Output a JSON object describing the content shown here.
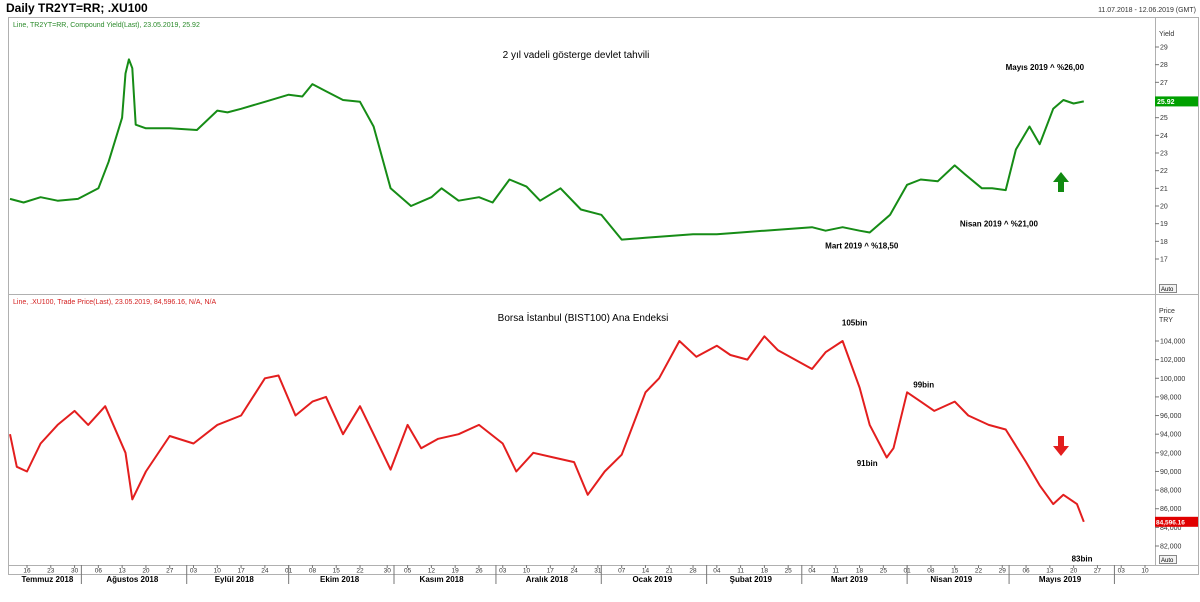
{
  "header": {
    "title": "Daily TR2YT=RR; .XU100",
    "date_range": "11.07.2018 - 12.06.2019 (GMT)"
  },
  "top_panel": {
    "info": "Line, TR2YT=RR, Compound Yield(Last), 23.05.2019, 25.92",
    "axis_label": "Yield",
    "last_value_label": "25.92",
    "auto_label": "Auto",
    "line_color": "#168c16",
    "badge_color": "#00a000"
  },
  "bottom_panel": {
    "info": "Line, .XU100, Trade Price(Last), 23.05.2019, 84,596.16, N/A, N/A",
    "axis_label_1": "Price",
    "axis_label_2": "TRY",
    "last_value_label": "84,596.16",
    "auto_label": "Auto",
    "line_color": "#e31e1e",
    "badge_color": "#e00000"
  },
  "chart_data": [
    {
      "type": "line",
      "title": "2 yıl vadeli gösterge devlet tahvili",
      "ylabel": "Yield",
      "ylim": [
        16.5,
        29.5
      ],
      "yticks": [
        17,
        18,
        19,
        20,
        21,
        22,
        23,
        24,
        25,
        26,
        27,
        28,
        29
      ],
      "grid": false,
      "series": [
        {
          "x": [
            "2018-07-11",
            "2018-07-15",
            "2018-07-20",
            "2018-07-25",
            "2018-07-31",
            "2018-08-06",
            "2018-08-09",
            "2018-08-13",
            "2018-08-14",
            "2018-08-15",
            "2018-08-16",
            "2018-08-17",
            "2018-08-20",
            "2018-08-27",
            "2018-09-04",
            "2018-09-10",
            "2018-09-13",
            "2018-09-17",
            "2018-09-24",
            "2018-10-01",
            "2018-10-05",
            "2018-10-08",
            "2018-10-12",
            "2018-10-17",
            "2018-10-22",
            "2018-10-26",
            "2018-10-31",
            "2018-11-06",
            "2018-11-12",
            "2018-11-15",
            "2018-11-20",
            "2018-11-26",
            "2018-11-30",
            "2018-12-05",
            "2018-12-10",
            "2018-12-14",
            "2018-12-20",
            "2018-12-26",
            "2019-01-01",
            "2019-01-07",
            "2019-01-14",
            "2019-01-21",
            "2019-01-28",
            "2019-02-04",
            "2019-02-11",
            "2019-02-18",
            "2019-02-25",
            "2019-03-04",
            "2019-03-08",
            "2019-03-13",
            "2019-03-18",
            "2019-03-21",
            "2019-03-27",
            "2019-04-01",
            "2019-04-05",
            "2019-04-10",
            "2019-04-15",
            "2019-04-18",
            "2019-04-23",
            "2019-04-26",
            "2019-04-30",
            "2019-05-03",
            "2019-05-07",
            "2019-05-10",
            "2019-05-14",
            "2019-05-17",
            "2019-05-20",
            "2019-05-23"
          ],
          "y": [
            20.4,
            20.2,
            20.5,
            20.3,
            20.4,
            21.0,
            22.5,
            25.0,
            27.5,
            28.3,
            27.8,
            24.6,
            24.4,
            24.4,
            24.3,
            25.4,
            25.3,
            25.5,
            25.9,
            26.3,
            26.2,
            26.9,
            26.5,
            26.0,
            25.9,
            24.5,
            21.0,
            20.0,
            20.5,
            21.0,
            20.3,
            20.5,
            20.2,
            21.5,
            21.1,
            20.3,
            21.0,
            19.8,
            19.5,
            18.1,
            18.2,
            18.3,
            18.4,
            18.4,
            18.5,
            18.6,
            18.7,
            18.8,
            18.6,
            18.8,
            18.6,
            18.5,
            19.5,
            21.2,
            21.5,
            21.4,
            22.3,
            21.8,
            21.0,
            21.0,
            20.9,
            23.2,
            24.5,
            23.5,
            25.5,
            26.0,
            25.8,
            25.92
          ]
        }
      ],
      "annotations": [
        {
          "text": "Mayıs 2019 ^ %26,00",
          "x": "2019-05-13",
          "y": 26.0
        },
        {
          "text": "Nisan 2019 ^ %21,00",
          "x": "2019-04-28",
          "y": 21.0
        },
        {
          "text": "Mart 2019 ^ %18,50",
          "x": "2019-03-21",
          "y": 18.5
        }
      ]
    },
    {
      "type": "line",
      "title": "Borsa İstanbul (BIST100) Ana Endeksi",
      "ylabel": "Price",
      "ylim": [
        81000,
        106000
      ],
      "yticks": [
        82000,
        84000,
        86000,
        88000,
        90000,
        92000,
        94000,
        96000,
        98000,
        100000,
        102000,
        104000
      ],
      "ytick_labels": [
        "82,000",
        "84,000",
        "86,000",
        "88,000",
        "90,000",
        "92,000",
        "94,000",
        "96,000",
        "98,000",
        "100,000",
        "102,000",
        "104,000"
      ],
      "grid": false,
      "series": [
        {
          "x": [
            "2018-07-11",
            "2018-07-13",
            "2018-07-16",
            "2018-07-20",
            "2018-07-25",
            "2018-07-30",
            "2018-08-03",
            "2018-08-08",
            "2018-08-14",
            "2018-08-16",
            "2018-08-20",
            "2018-08-27",
            "2018-09-03",
            "2018-09-10",
            "2018-09-17",
            "2018-09-24",
            "2018-09-28",
            "2018-10-03",
            "2018-10-08",
            "2018-10-12",
            "2018-10-17",
            "2018-10-22",
            "2018-10-26",
            "2018-10-31",
            "2018-11-05",
            "2018-11-09",
            "2018-11-14",
            "2018-11-20",
            "2018-11-26",
            "2018-12-03",
            "2018-12-07",
            "2018-12-12",
            "2018-12-18",
            "2018-12-24",
            "2018-12-28",
            "2019-01-02",
            "2019-01-07",
            "2019-01-14",
            "2019-01-18",
            "2019-01-24",
            "2019-01-29",
            "2019-02-04",
            "2019-02-08",
            "2019-02-13",
            "2019-02-18",
            "2019-02-22",
            "2019-02-27",
            "2019-03-04",
            "2019-03-08",
            "2019-03-13",
            "2019-03-18",
            "2019-03-21",
            "2019-03-26",
            "2019-03-28",
            "2019-04-01",
            "2019-04-05",
            "2019-04-09",
            "2019-04-15",
            "2019-04-19",
            "2019-04-25",
            "2019-04-30",
            "2019-05-06",
            "2019-05-10",
            "2019-05-14",
            "2019-05-17",
            "2019-05-21",
            "2019-05-23"
          ],
          "y": [
            94000,
            90500,
            90000,
            93000,
            95000,
            96500,
            95000,
            97000,
            92000,
            87000,
            90000,
            93800,
            93000,
            95000,
            96000,
            100000,
            100300,
            96000,
            97500,
            98000,
            94000,
            97000,
            94000,
            90200,
            95000,
            92500,
            93500,
            94000,
            95000,
            93000,
            90000,
            92000,
            91500,
            91000,
            87500,
            90000,
            91800,
            98500,
            100000,
            104000,
            102300,
            103500,
            102500,
            102000,
            104500,
            103000,
            102000,
            101000,
            102800,
            104000,
            99000,
            95000,
            91500,
            92500,
            98500,
            97500,
            96500,
            97500,
            96000,
            95000,
            94500,
            91000,
            88500,
            86500,
            87500,
            86500,
            84596.16
          ]
        }
      ],
      "annotations": [
        {
          "text": "105bin",
          "x": "2019-03-18",
          "y": 105000
        },
        {
          "text": "99bin",
          "x": "2019-04-05",
          "y": 99000
        },
        {
          "text": "91bin",
          "x": "2019-03-22",
          "y": 91000
        },
        {
          "text": "83bin",
          "x": "2019-05-21",
          "y": 83000
        }
      ]
    }
  ],
  "x_axis": {
    "day_ticks": [
      {
        "label": "16",
        "date": "2018-07-16"
      },
      {
        "label": "23",
        "date": "2018-07-23"
      },
      {
        "label": "30",
        "date": "2018-07-30"
      },
      {
        "label": "06",
        "date": "2018-08-06"
      },
      {
        "label": "13",
        "date": "2018-08-13"
      },
      {
        "label": "20",
        "date": "2018-08-20"
      },
      {
        "label": "27",
        "date": "2018-08-27"
      },
      {
        "label": "03",
        "date": "2018-09-03"
      },
      {
        "label": "10",
        "date": "2018-09-10"
      },
      {
        "label": "17",
        "date": "2018-09-17"
      },
      {
        "label": "24",
        "date": "2018-09-24"
      },
      {
        "label": "01",
        "date": "2018-10-01"
      },
      {
        "label": "08",
        "date": "2018-10-08"
      },
      {
        "label": "15",
        "date": "2018-10-15"
      },
      {
        "label": "22",
        "date": "2018-10-22"
      },
      {
        "label": "30",
        "date": "2018-10-30"
      },
      {
        "label": "05",
        "date": "2018-11-05"
      },
      {
        "label": "12",
        "date": "2018-11-12"
      },
      {
        "label": "19",
        "date": "2018-11-19"
      },
      {
        "label": "26",
        "date": "2018-11-26"
      },
      {
        "label": "03",
        "date": "2018-12-03"
      },
      {
        "label": "10",
        "date": "2018-12-10"
      },
      {
        "label": "17",
        "date": "2018-12-17"
      },
      {
        "label": "24",
        "date": "2018-12-24"
      },
      {
        "label": "31",
        "date": "2018-12-31"
      },
      {
        "label": "07",
        "date": "2019-01-07"
      },
      {
        "label": "14",
        "date": "2019-01-14"
      },
      {
        "label": "21",
        "date": "2019-01-21"
      },
      {
        "label": "28",
        "date": "2019-01-28"
      },
      {
        "label": "04",
        "date": "2019-02-04"
      },
      {
        "label": "11",
        "date": "2019-02-11"
      },
      {
        "label": "18",
        "date": "2019-02-18"
      },
      {
        "label": "25",
        "date": "2019-02-25"
      },
      {
        "label": "04",
        "date": "2019-03-04"
      },
      {
        "label": "11",
        "date": "2019-03-11"
      },
      {
        "label": "18",
        "date": "2019-03-18"
      },
      {
        "label": "25",
        "date": "2019-03-25"
      },
      {
        "label": "01",
        "date": "2019-04-01"
      },
      {
        "label": "08",
        "date": "2019-04-08"
      },
      {
        "label": "15",
        "date": "2019-04-15"
      },
      {
        "label": "22",
        "date": "2019-04-22"
      },
      {
        "label": "29",
        "date": "2019-04-29"
      },
      {
        "label": "06",
        "date": "2019-05-06"
      },
      {
        "label": "13",
        "date": "2019-05-13"
      },
      {
        "label": "20",
        "date": "2019-05-20"
      },
      {
        "label": "27",
        "date": "2019-05-27"
      },
      {
        "label": "03",
        "date": "2019-06-03"
      },
      {
        "label": "10",
        "date": "2019-06-10"
      }
    ],
    "months": [
      {
        "label": "Temmuz 2018",
        "date": "2018-07-22"
      },
      {
        "label": "Ağustos 2018",
        "date": "2018-08-16"
      },
      {
        "label": "Eylül 2018",
        "date": "2018-09-15"
      },
      {
        "label": "Ekim 2018",
        "date": "2018-10-16"
      },
      {
        "label": "Kasım 2018",
        "date": "2018-11-15"
      },
      {
        "label": "Aralık 2018",
        "date": "2018-12-16"
      },
      {
        "label": "Ocak 2019",
        "date": "2019-01-16"
      },
      {
        "label": "Şubat 2019",
        "date": "2019-02-14"
      },
      {
        "label": "Mart 2019",
        "date": "2019-03-15"
      },
      {
        "label": "Nisan 2019",
        "date": "2019-04-14"
      },
      {
        "label": "Mayıs 2019",
        "date": "2019-05-16"
      }
    ],
    "month_boundaries": [
      "2018-08-01",
      "2018-09-01",
      "2018-10-01",
      "2018-11-01",
      "2018-12-01",
      "2019-01-01",
      "2019-02-01",
      "2019-03-01",
      "2019-04-01",
      "2019-05-01",
      "2019-06-01"
    ]
  }
}
